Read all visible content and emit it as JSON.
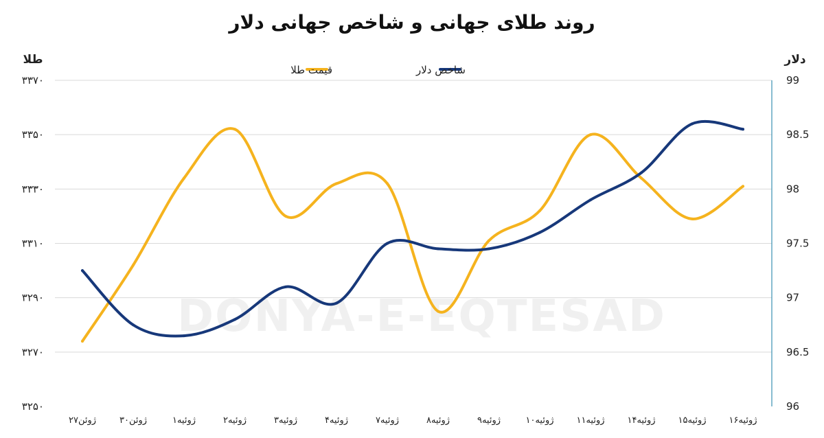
{
  "chart_data": {
    "type": "line",
    "title": "روند طلای جهانی و شاخص جهانی دلار",
    "watermark": "DONYA-E-EQTESAD",
    "y_left": {
      "label": "طلا",
      "ticks": [
        "۳۳۷۰",
        "۳۳۵۰",
        "۳۳۳۰",
        "۳۳۱۰",
        "۳۲۹۰",
        "۳۲۷۰",
        "۳۲۵۰"
      ],
      "range": [
        3250,
        3370
      ]
    },
    "y_right": {
      "label": "دلار",
      "ticks": [
        "99",
        "98.5",
        "98",
        "97.5",
        "97",
        "96.5",
        "96"
      ],
      "range": [
        96,
        99
      ]
    },
    "categories": [
      "۲۷ژوئن",
      "۳۰ژوئن",
      "۱ژوئیه",
      "۲ژوئیه",
      "۳ژوئیه",
      "۴ژوئیه",
      "۷ژوئیه",
      "۸ژوئیه",
      "۹ژوئیه",
      "۱۰ژوئیه",
      "۱۱ژوئیه",
      "۱۴ژوئیه",
      "۱۵ژوئیه",
      "۱۶ژوئیه"
    ],
    "series": [
      {
        "name": "قیمت طلا",
        "axis": "left",
        "color": "#F5B31E",
        "values": [
          3274,
          3302,
          3334,
          3352,
          3320,
          3332,
          3332,
          3285,
          3311,
          3322,
          3350,
          3334,
          3319,
          3331
        ]
      },
      {
        "name": "شاخص دلار",
        "axis": "right",
        "color": "#17387A",
        "values": [
          97.25,
          96.75,
          96.65,
          96.8,
          97.1,
          96.95,
          97.5,
          97.45,
          97.45,
          97.6,
          97.9,
          98.15,
          98.6,
          98.55
        ]
      }
    ],
    "grid": true,
    "legend": "top-center"
  }
}
